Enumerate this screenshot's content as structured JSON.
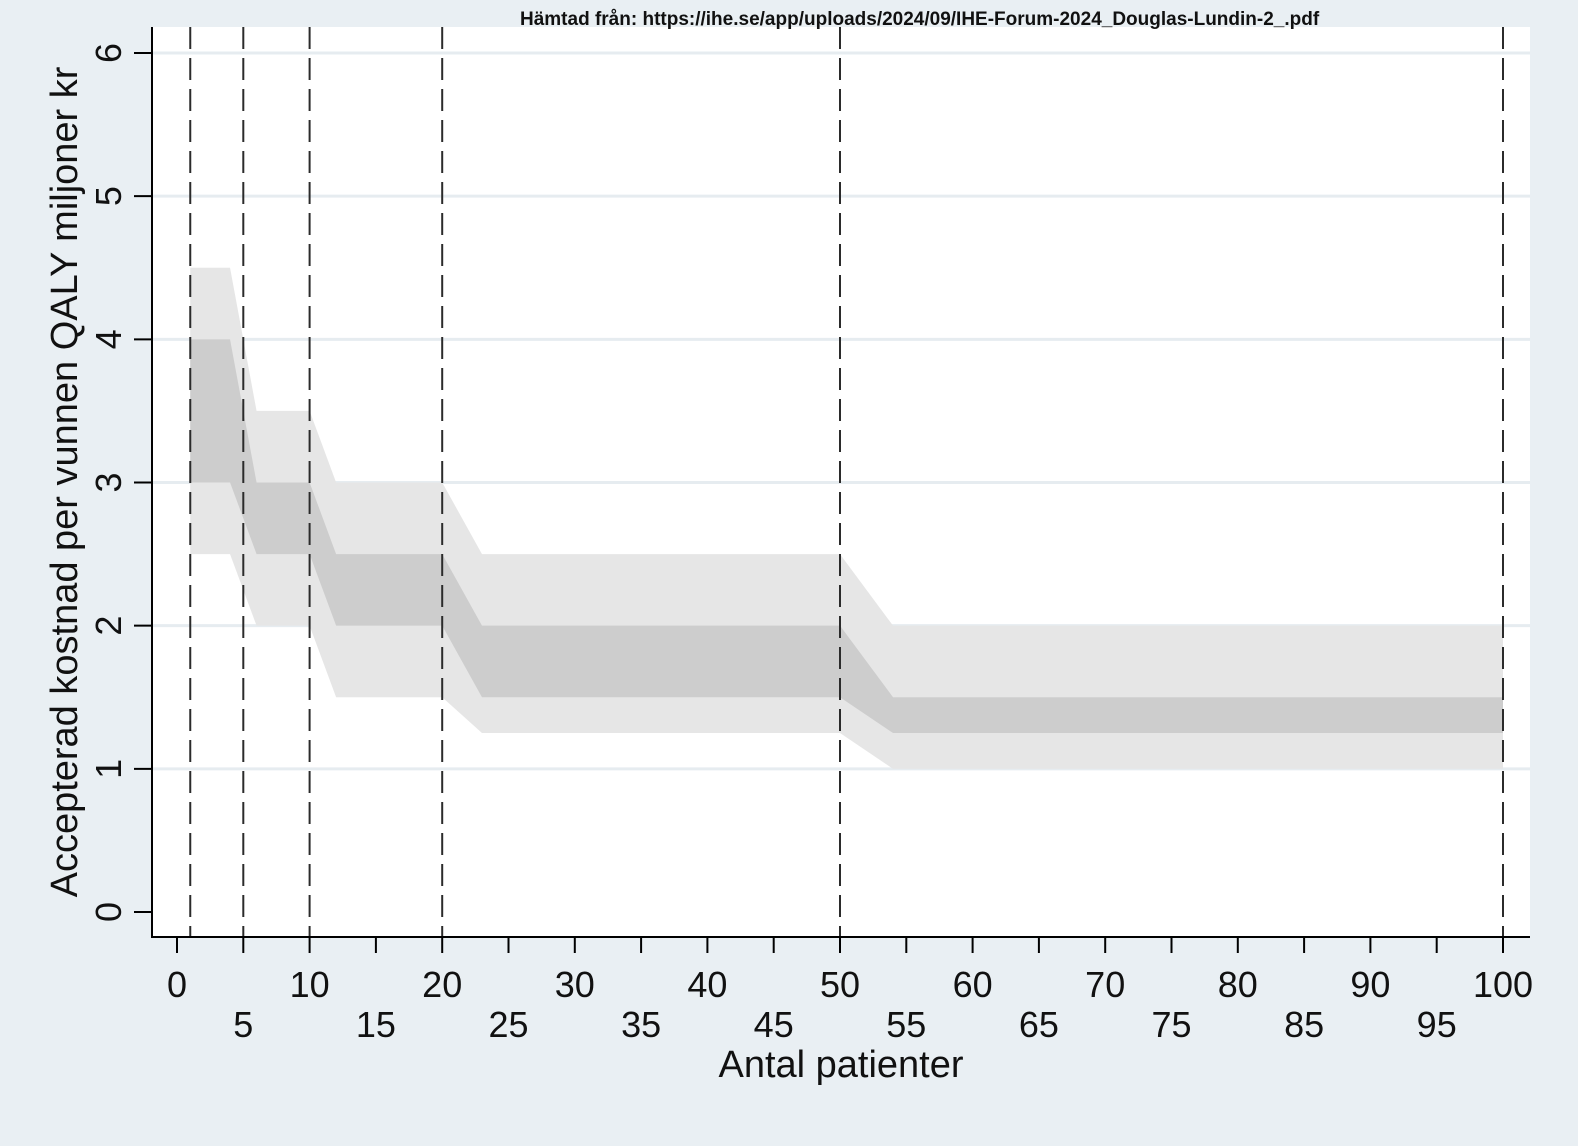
{
  "source_note": "Hämtad från: https://ihe.se/app/uploads/2024/09/IHE-Forum-2024_Douglas-Lundin-2_.pdf",
  "chart_data": {
    "type": "area",
    "xlabel": "Antal patienter",
    "ylabel": "Accepterad kostnad per vunnen QALY miljoner kr",
    "xlim": [
      0,
      100
    ],
    "ylim": [
      0,
      6
    ],
    "x_ticks": [
      0,
      5,
      10,
      15,
      20,
      25,
      30,
      35,
      40,
      45,
      50,
      55,
      60,
      65,
      70,
      75,
      80,
      85,
      90,
      95,
      100
    ],
    "x_tick_labels": [
      "0",
      "5",
      "10",
      "15",
      "20",
      "25",
      "30",
      "35",
      "40",
      "45",
      "50",
      "55",
      "60",
      "65",
      "70",
      "75",
      "80",
      "85",
      "90",
      "95",
      "100"
    ],
    "y_ticks": [
      0,
      1,
      2,
      3,
      4,
      5,
      6
    ],
    "y_tick_labels": [
      "0",
      "1",
      "2",
      "3",
      "4",
      "5",
      "6"
    ],
    "grid": "horizontal",
    "reference_lines_x": [
      1,
      5,
      10,
      20,
      50,
      100
    ],
    "bands": [
      {
        "shade": "outer",
        "color": "#e6e6e6",
        "points": [
          {
            "x": 1,
            "lower": 2.5,
            "upper": 4.5
          },
          {
            "x": 4,
            "lower": 2.5,
            "upper": 4.5
          },
          {
            "x": 6,
            "lower": 2.0,
            "upper": 3.5
          },
          {
            "x": 10,
            "lower": 2.0,
            "upper": 3.5
          },
          {
            "x": 12,
            "lower": 1.5,
            "upper": 3.0
          },
          {
            "x": 20,
            "lower": 1.5,
            "upper": 3.0
          },
          {
            "x": 23,
            "lower": 1.25,
            "upper": 2.5
          },
          {
            "x": 50,
            "lower": 1.25,
            "upper": 2.5
          },
          {
            "x": 54,
            "lower": 1.0,
            "upper": 2.0
          },
          {
            "x": 100,
            "lower": 1.0,
            "upper": 2.0
          }
        ]
      },
      {
        "shade": "inner",
        "color": "#cdcdcd",
        "points": [
          {
            "x": 1,
            "lower": 3.0,
            "upper": 4.0
          },
          {
            "x": 4,
            "lower": 3.0,
            "upper": 4.0
          },
          {
            "x": 6,
            "lower": 2.5,
            "upper": 3.0
          },
          {
            "x": 10,
            "lower": 2.5,
            "upper": 3.0
          },
          {
            "x": 12,
            "lower": 2.0,
            "upper": 2.5
          },
          {
            "x": 20,
            "lower": 2.0,
            "upper": 2.5
          },
          {
            "x": 23,
            "lower": 1.5,
            "upper": 2.0
          },
          {
            "x": 50,
            "lower": 1.5,
            "upper": 2.0
          },
          {
            "x": 54,
            "lower": 1.25,
            "upper": 1.5
          },
          {
            "x": 100,
            "lower": 1.25,
            "upper": 1.5
          }
        ]
      }
    ]
  }
}
